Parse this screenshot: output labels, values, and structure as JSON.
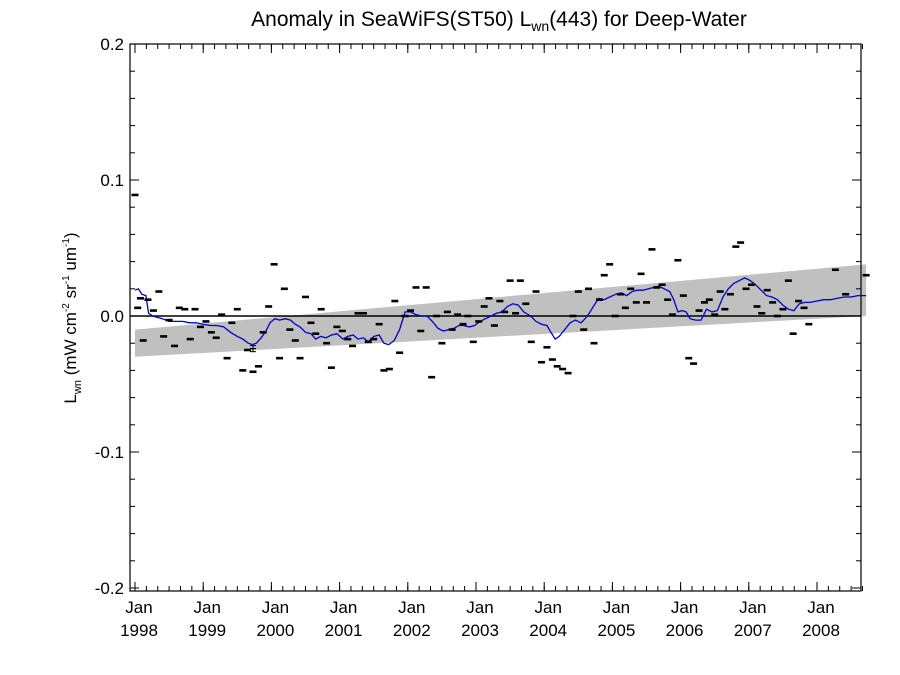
{
  "chart_data": {
    "type": "scatter",
    "title_main": "Anomaly in SeaWiFS(ST50) L",
    "title_sub": "wn",
    "title_tail": "(443) for Deep-Water",
    "ylabel": {
      "base": "L",
      "base_sub": "wn",
      "units_open": "(mW cm",
      "sup1": "-2",
      "mid1": " sr",
      "sup2": "-1",
      "mid2": " um",
      "sup3": "-1",
      "close": ")"
    },
    "xlim": [
      1998.0,
      2008.72
    ],
    "ylim": [
      -0.2,
      0.2
    ],
    "y_ticks": [
      {
        "value": -0.2,
        "label": "-0.2"
      },
      {
        "value": -0.1,
        "label": "-0.1"
      },
      {
        "value": 0.0,
        "label": "0.0"
      },
      {
        "value": 0.1,
        "label": "0.1"
      },
      {
        "value": 0.2,
        "label": "0.2"
      }
    ],
    "x_ticks": [
      {
        "value": 1998,
        "label1": "Jan",
        "label2": "1998"
      },
      {
        "value": 1999,
        "label1": "Jan",
        "label2": "1999"
      },
      {
        "value": 2000,
        "label1": "Jan",
        "label2": "2000"
      },
      {
        "value": 2001,
        "label1": "Jan",
        "label2": "2001"
      },
      {
        "value": 2002,
        "label1": "Jan",
        "label2": "2002"
      },
      {
        "value": 2003,
        "label1": "Jan",
        "label2": "2003"
      },
      {
        "value": 2004,
        "label1": "Jan",
        "label2": "2004"
      },
      {
        "value": 2005,
        "label1": "Jan",
        "label2": "2005"
      },
      {
        "value": 2006,
        "label1": "Jan",
        "label2": "2006"
      },
      {
        "value": 2007,
        "label1": "Jan",
        "label2": "2007"
      },
      {
        "value": 2008,
        "label1": "Jan",
        "label2": "2008"
      }
    ],
    "zero_line": 0.0,
    "band": {
      "color": "#c0c0c0",
      "lower": [
        [
          1998.0,
          -0.03
        ],
        [
          2008.72,
          0.0
        ]
      ],
      "upper": [
        [
          1998.0,
          -0.01
        ],
        [
          2008.72,
          0.038
        ]
      ]
    },
    "points": [
      [
        1998.0,
        0.089
      ],
      [
        1998.04,
        0.006
      ],
      [
        1998.08,
        0.013
      ],
      [
        1998.12,
        -0.018
      ],
      [
        1998.19,
        0.012
      ],
      [
        1998.27,
        0.004
      ],
      [
        1998.35,
        0.018
      ],
      [
        1998.42,
        -0.015
      ],
      [
        1998.5,
        -0.003
      ],
      [
        1998.58,
        -0.022
      ],
      [
        1998.65,
        0.006
      ],
      [
        1998.73,
        0.005
      ],
      [
        1998.81,
        -0.017
      ],
      [
        1998.88,
        0.005
      ],
      [
        1998.96,
        -0.008
      ],
      [
        1999.04,
        -0.004
      ],
      [
        1999.12,
        -0.012
      ],
      [
        1999.19,
        -0.016
      ],
      [
        1999.27,
        0.001
      ],
      [
        1999.35,
        -0.031
      ],
      [
        1999.42,
        -0.005
      ],
      [
        1999.5,
        0.005
      ],
      [
        1999.58,
        -0.04
      ],
      [
        1999.65,
        -0.025
      ],
      [
        1999.73,
        -0.041
      ],
      [
        1999.81,
        -0.037
      ],
      [
        1999.88,
        -0.012
      ],
      [
        1999.96,
        0.007
      ],
      [
        2000.04,
        0.038
      ],
      [
        2000.12,
        -0.031
      ],
      [
        2000.19,
        0.02
      ],
      [
        2000.27,
        -0.01
      ],
      [
        2000.35,
        -0.018
      ],
      [
        2000.42,
        -0.031
      ],
      [
        2000.5,
        0.014
      ],
      [
        2000.58,
        -0.005
      ],
      [
        2000.65,
        -0.013
      ],
      [
        2000.73,
        0.005
      ],
      [
        2000.81,
        -0.02
      ],
      [
        2000.88,
        -0.038
      ],
      [
        2000.96,
        -0.008
      ],
      [
        2001.04,
        -0.011
      ],
      [
        2001.12,
        -0.017
      ],
      [
        2001.19,
        -0.022
      ],
      [
        2001.27,
        0.002
      ],
      [
        2001.35,
        0.002
      ],
      [
        2001.42,
        -0.019
      ],
      [
        2001.5,
        -0.017
      ],
      [
        2001.58,
        -0.006
      ],
      [
        2001.65,
        -0.04
      ],
      [
        2001.73,
        -0.039
      ],
      [
        2001.81,
        0.011
      ],
      [
        2001.88,
        -0.027
      ],
      [
        2001.96,
        0.0
      ],
      [
        2002.04,
        0.004
      ],
      [
        2002.12,
        0.021
      ],
      [
        2002.19,
        -0.011
      ],
      [
        2002.27,
        0.021
      ],
      [
        2002.35,
        -0.045
      ],
      [
        2002.42,
        0.0
      ],
      [
        2002.5,
        -0.02
      ],
      [
        2002.58,
        0.003
      ],
      [
        2002.65,
        -0.01
      ],
      [
        2002.73,
        0.001
      ],
      [
        2002.81,
        -0.006
      ],
      [
        2002.88,
        0.0
      ],
      [
        2002.96,
        -0.019
      ],
      [
        2003.04,
        -0.004
      ],
      [
        2003.12,
        0.007
      ],
      [
        2003.19,
        0.013
      ],
      [
        2003.27,
        -0.007
      ],
      [
        2003.35,
        0.011
      ],
      [
        2003.42,
        0.003
      ],
      [
        2003.5,
        0.026
      ],
      [
        2003.58,
        0.002
      ],
      [
        2003.65,
        0.026
      ],
      [
        2003.73,
        0.009
      ],
      [
        2003.81,
        -0.019
      ],
      [
        2003.88,
        0.018
      ],
      [
        2003.96,
        -0.034
      ],
      [
        2004.04,
        -0.023
      ],
      [
        2004.12,
        -0.032
      ],
      [
        2004.19,
        -0.037
      ],
      [
        2004.27,
        -0.039
      ],
      [
        2004.35,
        -0.042
      ],
      [
        2004.42,
        0.0
      ],
      [
        2004.5,
        0.018
      ],
      [
        2004.58,
        -0.01
      ],
      [
        2004.65,
        0.02
      ],
      [
        2004.73,
        -0.02
      ],
      [
        2004.81,
        0.012
      ],
      [
        2004.88,
        0.03
      ],
      [
        2004.96,
        0.038
      ],
      [
        2005.04,
        0.0
      ],
      [
        2005.12,
        0.016
      ],
      [
        2005.19,
        0.006
      ],
      [
        2005.27,
        0.02
      ],
      [
        2005.35,
        0.01
      ],
      [
        2005.42,
        0.031
      ],
      [
        2005.5,
        0.01
      ],
      [
        2005.58,
        0.049
      ],
      [
        2005.65,
        0.021
      ],
      [
        2005.73,
        0.023
      ],
      [
        2005.81,
        0.012
      ],
      [
        2005.88,
        0.001
      ],
      [
        2005.96,
        0.041
      ],
      [
        2006.04,
        0.015
      ],
      [
        2006.12,
        -0.031
      ],
      [
        2006.19,
        -0.035
      ],
      [
        2006.27,
        0.004
      ],
      [
        2006.35,
        0.01
      ],
      [
        2006.42,
        0.012
      ],
      [
        2006.5,
        0.001
      ],
      [
        2006.58,
        0.018
      ],
      [
        2006.65,
        0.005
      ],
      [
        2006.73,
        0.016
      ],
      [
        2006.81,
        0.051
      ],
      [
        2006.88,
        0.054
      ],
      [
        2006.96,
        0.02
      ],
      [
        2007.04,
        0.023
      ],
      [
        2007.12,
        0.007
      ],
      [
        2007.19,
        0.002
      ],
      [
        2007.27,
        0.019
      ],
      [
        2007.35,
        0.01
      ],
      [
        2007.42,
        0.0
      ],
      [
        2007.5,
        0.005
      ],
      [
        2007.58,
        0.026
      ],
      [
        2007.65,
        -0.013
      ],
      [
        2007.73,
        0.011
      ],
      [
        2007.81,
        0.006
      ],
      [
        2007.88,
        -0.006
      ],
      [
        2008.27,
        0.034
      ],
      [
        2008.42,
        0.016
      ],
      [
        2008.72,
        0.03
      ]
    ],
    "error_point": {
      "x": 1999.73,
      "y": -0.024,
      "err": 0.0015
    },
    "smooth_line": {
      "color": "#0000cc",
      "points": [
        [
          1998.0,
          0.019
        ],
        [
          1998.05,
          0.02
        ],
        [
          1998.1,
          0.016
        ],
        [
          1998.16,
          0.015
        ],
        [
          1998.2,
          0.002
        ],
        [
          1998.26,
          0.0
        ],
        [
          1998.33,
          -0.001
        ],
        [
          1998.4,
          -0.002
        ],
        [
          1998.5,
          -0.004
        ],
        [
          1998.6,
          -0.004
        ],
        [
          1998.7,
          -0.004
        ],
        [
          1998.8,
          -0.005
        ],
        [
          1998.9,
          -0.005
        ],
        [
          1999.0,
          -0.006
        ],
        [
          1999.1,
          -0.007
        ],
        [
          1999.2,
          -0.007
        ],
        [
          1999.3,
          -0.008
        ],
        [
          1999.4,
          -0.012
        ],
        [
          1999.5,
          -0.015
        ],
        [
          1999.58,
          -0.017
        ],
        [
          1999.66,
          -0.02
        ],
        [
          1999.72,
          -0.021
        ],
        [
          1999.78,
          -0.02
        ],
        [
          1999.85,
          -0.016
        ],
        [
          1999.92,
          -0.011
        ],
        [
          1999.98,
          -0.005
        ],
        [
          2000.05,
          -0.002
        ],
        [
          2000.12,
          -0.003
        ],
        [
          2000.2,
          -0.002
        ],
        [
          2000.28,
          -0.003
        ],
        [
          2000.35,
          -0.006
        ],
        [
          2000.42,
          -0.008
        ],
        [
          2000.5,
          -0.012
        ],
        [
          2000.58,
          -0.013
        ],
        [
          2000.65,
          -0.017
        ],
        [
          2000.72,
          -0.015
        ],
        [
          2000.8,
          -0.016
        ],
        [
          2000.88,
          -0.014
        ],
        [
          2000.96,
          -0.013
        ],
        [
          2001.05,
          -0.017
        ],
        [
          2001.12,
          -0.015
        ],
        [
          2001.2,
          -0.014
        ],
        [
          2001.27,
          -0.017
        ],
        [
          2001.35,
          -0.016
        ],
        [
          2001.42,
          -0.019
        ],
        [
          2001.5,
          -0.015
        ],
        [
          2001.58,
          -0.014
        ],
        [
          2001.65,
          -0.02
        ],
        [
          2001.72,
          -0.021
        ],
        [
          2001.8,
          -0.018
        ],
        [
          2001.88,
          -0.01
        ],
        [
          2001.96,
          0.003
        ],
        [
          2002.04,
          0.003
        ],
        [
          2002.12,
          0.001
        ],
        [
          2002.2,
          0.0
        ],
        [
          2002.28,
          0.0
        ],
        [
          2002.36,
          -0.004
        ],
        [
          2002.44,
          -0.009
        ],
        [
          2002.52,
          -0.011
        ],
        [
          2002.6,
          -0.01
        ],
        [
          2002.68,
          -0.009
        ],
        [
          2002.75,
          -0.007
        ],
        [
          2002.82,
          -0.007
        ],
        [
          2002.9,
          -0.008
        ],
        [
          2002.98,
          -0.007
        ],
        [
          2003.06,
          -0.004
        ],
        [
          2003.14,
          -0.002
        ],
        [
          2003.22,
          0.0
        ],
        [
          2003.3,
          0.002
        ],
        [
          2003.38,
          0.003
        ],
        [
          2003.46,
          0.007
        ],
        [
          2003.54,
          0.009
        ],
        [
          2003.62,
          0.008
        ],
        [
          2003.7,
          0.003
        ],
        [
          2003.8,
          0.0
        ],
        [
          2003.88,
          -0.004
        ],
        [
          2003.96,
          -0.006
        ],
        [
          2004.04,
          -0.007
        ],
        [
          2004.1,
          -0.012
        ],
        [
          2004.16,
          -0.017
        ],
        [
          2004.22,
          -0.015
        ],
        [
          2004.3,
          -0.01
        ],
        [
          2004.38,
          -0.005
        ],
        [
          2004.46,
          -0.003
        ],
        [
          2004.54,
          -0.005
        ],
        [
          2004.6,
          -0.002
        ],
        [
          2004.66,
          0.002
        ],
        [
          2004.72,
          0.007
        ],
        [
          2004.8,
          0.013
        ],
        [
          2004.88,
          0.012
        ],
        [
          2004.96,
          0.014
        ],
        [
          2005.05,
          0.016
        ],
        [
          2005.13,
          0.017
        ],
        [
          2005.21,
          0.015
        ],
        [
          2005.29,
          0.018
        ],
        [
          2005.37,
          0.019
        ],
        [
          2005.45,
          0.019
        ],
        [
          2005.53,
          0.02
        ],
        [
          2005.61,
          0.021
        ],
        [
          2005.68,
          0.022
        ],
        [
          2005.76,
          0.02
        ],
        [
          2005.84,
          0.018
        ],
        [
          2005.9,
          0.012
        ],
        [
          2005.96,
          0.003
        ],
        [
          2006.02,
          0.004
        ],
        [
          2006.08,
          0.003
        ],
        [
          2006.14,
          -0.002
        ],
        [
          2006.22,
          -0.003
        ],
        [
          2006.3,
          -0.003
        ],
        [
          2006.38,
          0.005
        ],
        [
          2006.46,
          0.003
        ],
        [
          2006.54,
          0.004
        ],
        [
          2006.62,
          0.014
        ],
        [
          2006.7,
          0.02
        ],
        [
          2006.78,
          0.024
        ],
        [
          2006.86,
          0.026
        ],
        [
          2006.94,
          0.028
        ],
        [
          2007.02,
          0.026
        ],
        [
          2007.1,
          0.023
        ],
        [
          2007.18,
          0.019
        ],
        [
          2007.26,
          0.015
        ],
        [
          2007.34,
          0.014
        ],
        [
          2007.42,
          0.012
        ],
        [
          2007.5,
          0.008
        ],
        [
          2007.58,
          0.005
        ],
        [
          2007.66,
          0.004
        ],
        [
          2007.74,
          0.009
        ],
        [
          2007.82,
          0.01
        ],
        [
          2007.9,
          0.01
        ],
        [
          2008.0,
          0.011
        ],
        [
          2008.1,
          0.012
        ],
        [
          2008.2,
          0.012
        ],
        [
          2008.3,
          0.013
        ],
        [
          2008.4,
          0.014
        ],
        [
          2008.5,
          0.014
        ],
        [
          2008.6,
          0.015
        ],
        [
          2008.72,
          0.015
        ]
      ]
    }
  }
}
